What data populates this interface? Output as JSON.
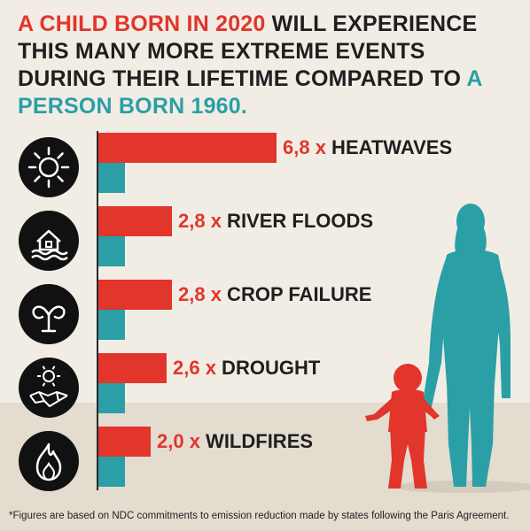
{
  "title": {
    "part1_red": "A CHILD BORN IN 2020",
    "part2": " WILL EXPERIENCE THIS MANY MORE EXTREME EVENTS DURING THEIR LIFETIME COMPARED TO ",
    "part3_teal": "A PERSON BORN 1960."
  },
  "footnote": "*Figures are based on NDC commitments to emission reduction made by states following the Paris Agreement.",
  "colors": {
    "child_2020": "#e2352c",
    "person_1960": "#2a9fa6",
    "text": "#1f1f1f",
    "background": "#f1ede4"
  },
  "chart_data": {
    "type": "bar",
    "orientation": "horizontal",
    "categories": [
      "HEATWAVES",
      "RIVER FLOODS",
      "CROP FAILURE",
      "DROUGHT",
      "WILDFIRES"
    ],
    "icons": [
      "sun-icon",
      "flooded-house-icon",
      "wilted-plant-icon",
      "drought-cracked-earth-icon",
      "flame-icon"
    ],
    "series": [
      {
        "name": "A CHILD BORN IN 2020",
        "values": [
          6.8,
          2.8,
          2.8,
          2.6,
          2.0
        ]
      },
      {
        "name": "A PERSON BORN 1960",
        "values": [
          1,
          1,
          1,
          1,
          1
        ]
      }
    ],
    "labels": [
      "6,8 x",
      "2,8 x",
      "2,8 x",
      "2,6 x",
      "2,0 x"
    ],
    "xlim": [
      0,
      6.8
    ]
  }
}
